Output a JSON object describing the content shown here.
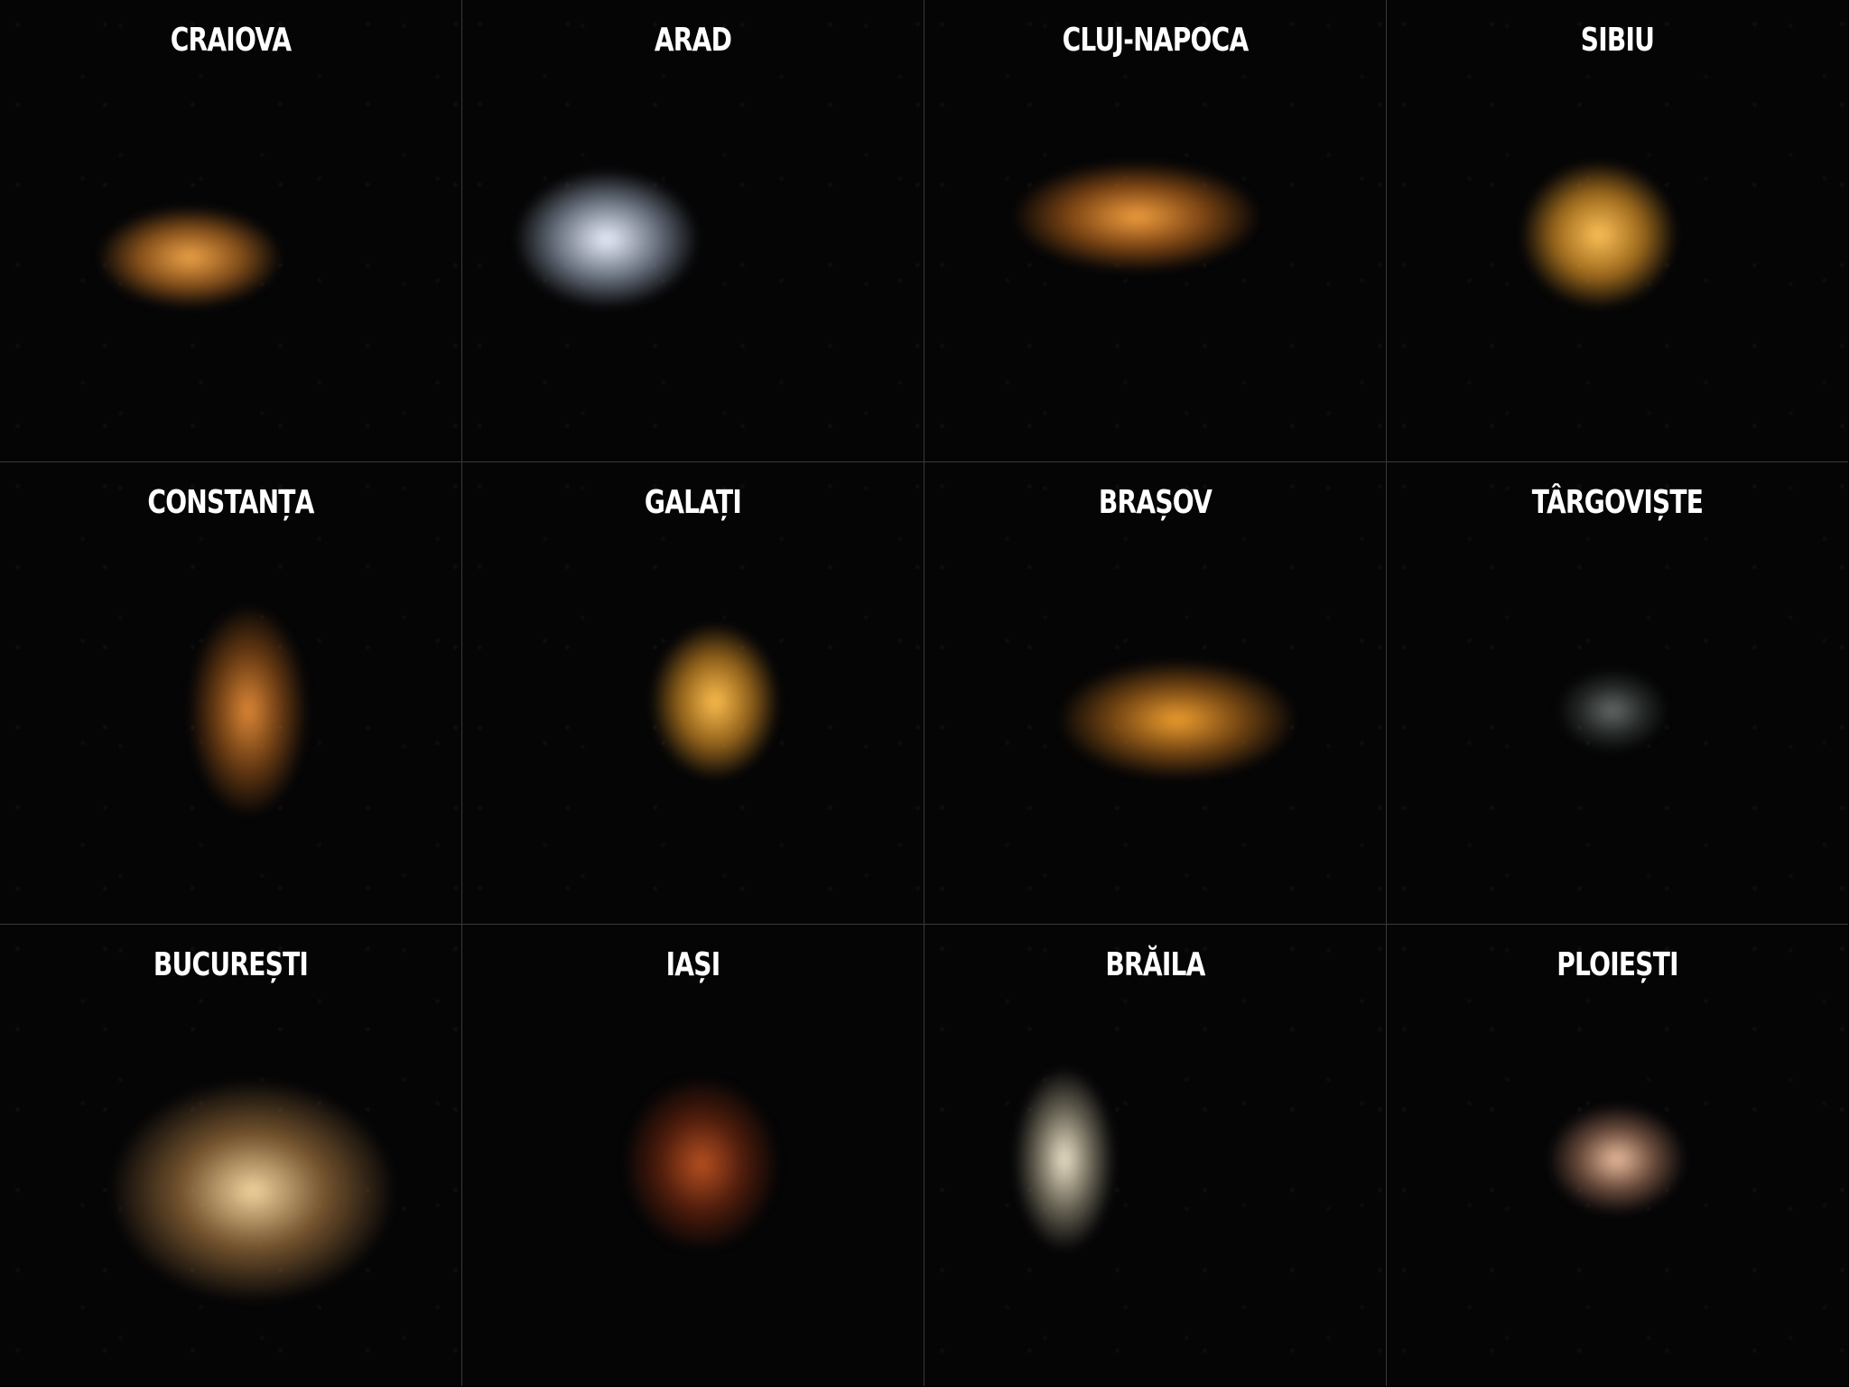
{
  "panels": [
    {
      "label": "CRAIOVA"
    },
    {
      "label": "ARAD"
    },
    {
      "label": "CLUJ-NAPOCA"
    },
    {
      "label": "SIBIU"
    },
    {
      "label": "CONSTANȚA"
    },
    {
      "label": "GALAȚI"
    },
    {
      "label": "BRAȘOV"
    },
    {
      "label": "TÂRGOVIȘTE"
    },
    {
      "label": "BUCUREȘTI"
    },
    {
      "label": "IAȘI"
    },
    {
      "label": "BRĂILA"
    },
    {
      "label": "PLOIEȘTI"
    }
  ]
}
